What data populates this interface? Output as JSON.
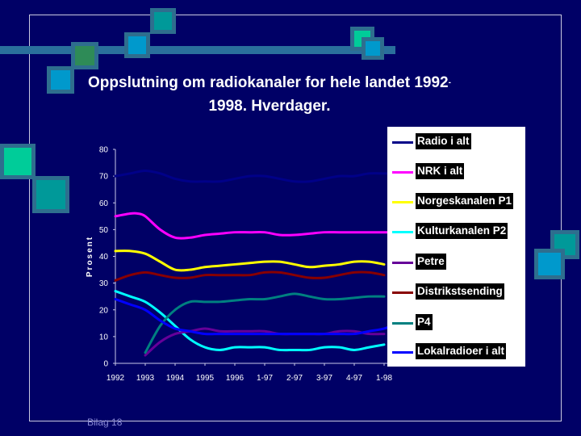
{
  "slide": {
    "title_line1": "Oppslutning om radiokanaler for hele landet 1992",
    "title_dot": "-",
    "title_line2": "1998. Hverdager.",
    "footer": "Bilag 18"
  },
  "colors": {
    "background": "#000066",
    "decor_bar": "#2a6f9c",
    "decor_teal": "#009999",
    "decor_blue": "#0099cc"
  },
  "chart_data": {
    "type": "line",
    "ylabel": "Prosent",
    "xlabel": "",
    "ylim": [
      0,
      80
    ],
    "yticks": [
      "0",
      "10",
      "20",
      "30",
      "40",
      "50",
      "60",
      "70",
      "80"
    ],
    "categories": [
      "1992",
      "1993",
      "1994",
      "1995",
      "1996",
      "1-97",
      "2-97",
      "3-97",
      "4-97",
      "1-98"
    ],
    "grid": false,
    "legend_position": "right",
    "series": [
      {
        "name": "Radio i alt",
        "color": "#000088",
        "x": [
          0,
          0.5,
          1,
          1.5,
          2,
          2.5,
          3,
          3.5,
          4,
          4.5,
          5,
          5.5,
          6,
          6.5,
          7,
          7.5,
          8,
          8.5,
          9,
          9.5
        ],
        "y": [
          70,
          71,
          72,
          71,
          69,
          68,
          68,
          68,
          69,
          70,
          70,
          69,
          68,
          68,
          69,
          70,
          70,
          71,
          71,
          71
        ]
      },
      {
        "name": "NRK i alt",
        "color": "#ff00ff",
        "x": [
          0,
          0.5,
          0.75,
          1,
          1.5,
          2,
          2.5,
          3,
          3.5,
          4,
          4.5,
          5,
          5.5,
          6,
          6.5,
          7,
          7.5,
          8,
          8.5,
          9,
          9.5
        ],
        "y": [
          55,
          56,
          56,
          55,
          50,
          47,
          47,
          48,
          48.5,
          49,
          49,
          49,
          48,
          48,
          48.5,
          49,
          49,
          49,
          49,
          49,
          49
        ]
      },
      {
        "name": "Norgeskanalen P1",
        "color": "#ffff00",
        "x": [
          0,
          0.5,
          1,
          1.5,
          2,
          2.5,
          3,
          3.5,
          4,
          4.5,
          5,
          5.5,
          6,
          6.5,
          7,
          7.5,
          8,
          8.5,
          9
        ],
        "y": [
          42,
          42,
          41,
          38,
          35,
          35,
          36,
          36.5,
          37,
          37.5,
          38,
          38,
          37,
          36,
          36.5,
          37,
          38,
          38,
          37
        ]
      },
      {
        "name": "Kulturkanalen P2",
        "color": "#00ffff",
        "x": [
          0,
          0.5,
          1,
          1.5,
          2,
          2.5,
          3,
          3.5,
          4,
          4.5,
          5,
          5.5,
          6,
          6.5,
          7,
          7.5,
          8,
          8.5,
          9
        ],
        "y": [
          27,
          25,
          23,
          19,
          14,
          9,
          6,
          5,
          6,
          6,
          6,
          5,
          5,
          5,
          6,
          6,
          5,
          6,
          7
        ]
      },
      {
        "name": "Petre",
        "color": "#660099",
        "x": [
          1,
          1.5,
          2,
          2.5,
          3,
          3.5,
          4,
          4.5,
          5,
          5.5,
          6,
          6.5,
          7,
          7.5,
          8,
          8.5,
          9
        ],
        "y": [
          3,
          8,
          11,
          12,
          13,
          12,
          12,
          12,
          12,
          11,
          11,
          11,
          11,
          12,
          12,
          11,
          11
        ]
      },
      {
        "name": "Distrikstsending",
        "color": "#880000",
        "x": [
          0,
          0.5,
          1,
          1.5,
          2,
          2.5,
          3,
          3.5,
          4,
          4.5,
          5,
          5.5,
          6,
          6.5,
          7,
          7.5,
          8,
          8.5,
          9
        ],
        "y": [
          31,
          33,
          34,
          33,
          32,
          32,
          33,
          33,
          33,
          33,
          34,
          34,
          33,
          32,
          32,
          33,
          34,
          34,
          33
        ]
      },
      {
        "name": "P4",
        "color": "#008080",
        "x": [
          1,
          1.5,
          2,
          2.5,
          3,
          3.5,
          4,
          4.5,
          5,
          5.5,
          6,
          6.5,
          7,
          7.5,
          8,
          8.5,
          9
        ],
        "y": [
          4,
          14,
          20,
          23,
          23,
          23,
          23.5,
          24,
          24,
          25,
          26,
          25,
          24,
          24,
          24.5,
          25,
          25
        ]
      },
      {
        "name": "Lokalradioer i alt",
        "color": "#0000ff",
        "x": [
          0,
          0.5,
          1,
          1.5,
          2,
          2.5,
          3,
          3.5,
          4,
          4.5,
          5,
          5.5,
          6,
          6.5,
          7,
          7.5,
          8,
          8.5,
          9,
          9.5
        ],
        "y": [
          24,
          22,
          20,
          16,
          13,
          12,
          11,
          11,
          11,
          11,
          11,
          11,
          11,
          11,
          11,
          11,
          11,
          12,
          13,
          15
        ]
      }
    ]
  }
}
